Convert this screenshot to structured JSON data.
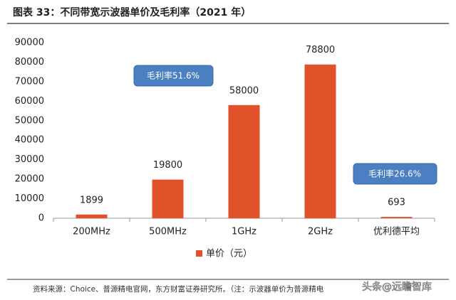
{
  "chart_data": {
    "type": "bar",
    "title": "图表 33：不同带宽示波器单价及毛利率（2021 年）",
    "categories": [
      "200MHz",
      "500MHz",
      "1GHz",
      "2GHz",
      "优利德平均"
    ],
    "series": [
      {
        "name": "单价（元）",
        "color": "#e2522a",
        "values": [
          1899,
          19800,
          58000,
          78800,
          693
        ]
      }
    ],
    "ylim": [
      0,
      90000
    ],
    "yticks": [
      0,
      10000,
      20000,
      30000,
      40000,
      50000,
      60000,
      70000,
      80000,
      90000
    ],
    "grid": false,
    "legend": "bottom",
    "annotations": [
      "毛利率51.6%",
      "毛利率26.6%"
    ],
    "source": "资料来源：Choice、普源精电官网，东方财富证券研究所。（注：示波器单价为普源精电",
    "watermark": "头条@远瞻智库"
  }
}
